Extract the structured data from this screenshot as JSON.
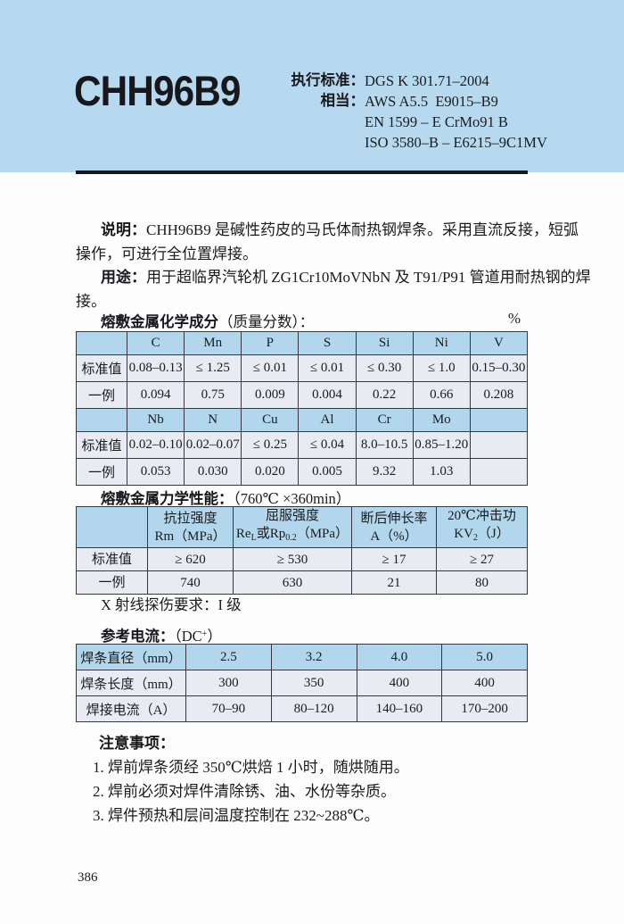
{
  "colors": {
    "band_blue": "#b6d9ef",
    "table_header_blue": "#b2d6eb",
    "table_row_bg": "#e9ebf3",
    "rule_black": "#15151a"
  },
  "header": {
    "product": "CHH96B9",
    "standard_label": "执行标准：",
    "standard_value": "DGS K 301.71–2004",
    "equiv_label": "相当：",
    "equiv_line1": "AWS A5.5  E9015–B9",
    "equiv_line2": "EN 1599 – E CrMo91 B",
    "equiv_line3": "ISO 3580–B – E6215–9C1MV"
  },
  "description": {
    "line1_label": "说明：",
    "line1_text": "CHH96B9 是碱性药皮的马氏体耐热钢焊条。采用直流反接，短弧",
    "line2": "操作，可进行全位置焊接。",
    "line3_label": "用途：",
    "line3_text": "用于超临界汽轮机 ZG1Cr10MoVNbN 及 T91/P91 管道用耐热钢的焊",
    "line4": "接。"
  },
  "chem": {
    "title_bold": "熔敷金属化学成分",
    "title_rest": "（质量分数）：",
    "unit": "%",
    "table": {
      "rows": [
        {
          "type": "hdr",
          "cells": [
            "",
            "C",
            "Mn",
            "P",
            "S",
            "Si",
            "Ni",
            "V"
          ]
        },
        {
          "type": "data",
          "cells": [
            "标准值",
            "0.08–0.13",
            "≤ 1.25",
            "≤ 0.01",
            "≤ 0.01",
            "≤ 0.30",
            "≤ 1.0",
            "0.15–0.30"
          ]
        },
        {
          "type": "data",
          "cells": [
            "一例",
            "0.094",
            "0.75",
            "0.009",
            "0.004",
            "0.22",
            "0.66",
            "0.208"
          ]
        },
        {
          "type": "hdr",
          "cells": [
            "",
            "Nb",
            "N",
            "Cu",
            "Al",
            "Cr",
            "Mo",
            ""
          ]
        },
        {
          "type": "data",
          "cells": [
            "标准值",
            "0.02–0.10",
            "0.02–0.07",
            "≤ 0.25",
            "≤ 0.04",
            "8.0–10.5",
            "0.85–1.20",
            ""
          ]
        },
        {
          "type": "data",
          "cells": [
            "一例",
            "0.053",
            "0.030",
            "0.020",
            "0.005",
            "9.32",
            "1.03",
            ""
          ]
        }
      ]
    }
  },
  "mech": {
    "title_bold": "熔敷金属力学性能：",
    "title_rest": "（760℃ ×360min）",
    "h1": {
      "l1": "抗拉强度",
      "l2": "Rm（MPa）"
    },
    "h2": {
      "l1": "屈服强度",
      "p1": "Re",
      "s1": "L",
      "p2": "或Rp",
      "s2": "0.2",
      "p3": "（MPa）"
    },
    "h3": {
      "l1": "断后伸长率",
      "l2": "A（%）"
    },
    "h4": {
      "l1": "20℃冲击功",
      "p1": "KV",
      "s1": "2",
      "p2": "（J）"
    },
    "row_std": {
      "c0": "标准值",
      "c1": "≥ 620",
      "c2": "≥ 530",
      "c3": "≥ 17",
      "c4": "≥ 27"
    },
    "row_ex": {
      "c0": "一例",
      "c1": "740",
      "c2": "630",
      "c3": "21",
      "c4": "80"
    },
    "xray": "X 射线探伤要求：I 级"
  },
  "current": {
    "title_bold": "参考电流：",
    "title_pre": "（DC",
    "title_sup": "+",
    "title_post": "）",
    "table": {
      "rows": [
        {
          "type": "hdr",
          "cells": [
            "焊条直径（mm）",
            "2.5",
            "3.2",
            "4.0",
            "5.0"
          ]
        },
        {
          "type": "data",
          "cells": [
            "焊条长度（mm）",
            "300",
            "350",
            "400",
            "400"
          ]
        },
        {
          "type": "data",
          "cells": [
            "焊接电流（A）",
            "70–90",
            "80–120",
            "140–160",
            "170–200"
          ]
        }
      ]
    }
  },
  "notes": {
    "title": "注意事项：",
    "item1": "1. 焊前焊条须经 350℃烘焙 1 小时，随烘随用。",
    "item2": "2. 焊前必须对焊件清除锈、油、水份等杂质。",
    "item3": "3. 焊件预热和层间温度控制在 232~288℃。"
  },
  "page": {
    "number": "386"
  }
}
